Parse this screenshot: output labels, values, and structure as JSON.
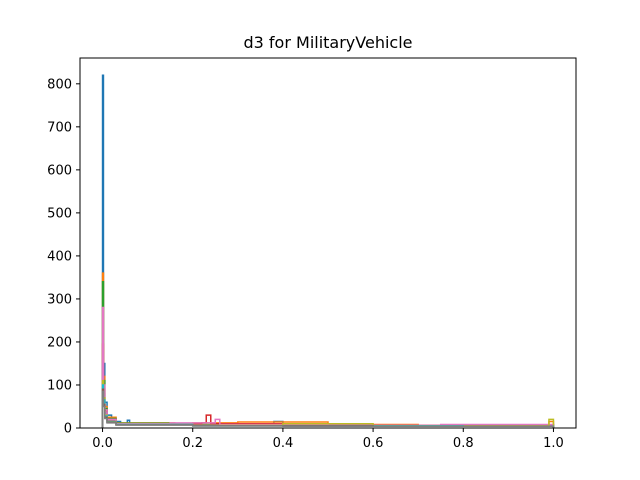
{
  "chart_data": {
    "type": "histogram",
    "title": "d3 for MilitaryVehicle",
    "xlabel": "",
    "ylabel": "",
    "xlim": [
      -0.05,
      1.05
    ],
    "ylim": [
      0,
      860
    ],
    "x_ticks": [
      0.0,
      0.2,
      0.4,
      0.6,
      0.8,
      1.0
    ],
    "x_tick_labels": [
      "0.0",
      "0.2",
      "0.4",
      "0.6",
      "0.8",
      "1.0"
    ],
    "y_ticks": [
      0,
      100,
      200,
      300,
      400,
      500,
      600,
      700,
      800
    ],
    "y_tick_labels": [
      "0",
      "100",
      "200",
      "300",
      "400",
      "500",
      "600",
      "700",
      "800"
    ],
    "histtype": "step",
    "grid": false,
    "series": [
      {
        "color": "#1f77b4",
        "points": [
          [
            0.0,
            820
          ],
          [
            0.002,
            150
          ],
          [
            0.005,
            60
          ],
          [
            0.01,
            30
          ],
          [
            0.02,
            15
          ],
          [
            0.04,
            10
          ],
          [
            0.055,
            18
          ],
          [
            0.06,
            8
          ],
          [
            0.2,
            6
          ],
          [
            0.38,
            15
          ],
          [
            0.4,
            7
          ],
          [
            0.6,
            6
          ],
          [
            0.8,
            5
          ],
          [
            1.0,
            6
          ]
        ]
      },
      {
        "color": "#ff7f0e",
        "points": [
          [
            0.0,
            360
          ],
          [
            0.002,
            120
          ],
          [
            0.005,
            50
          ],
          [
            0.01,
            25
          ],
          [
            0.03,
            12
          ],
          [
            0.16,
            10
          ],
          [
            0.2,
            12
          ],
          [
            0.3,
            14
          ],
          [
            0.5,
            8
          ],
          [
            0.7,
            6
          ],
          [
            0.9,
            5
          ],
          [
            0.99,
            15
          ],
          [
            1.0,
            8
          ]
        ]
      },
      {
        "color": "#2ca02c",
        "points": [
          [
            0.0,
            340
          ],
          [
            0.002,
            110
          ],
          [
            0.005,
            45
          ],
          [
            0.01,
            22
          ],
          [
            0.03,
            11
          ],
          [
            0.2,
            8
          ],
          [
            0.4,
            6
          ],
          [
            0.6,
            5
          ],
          [
            0.8,
            5
          ],
          [
            1.0,
            10
          ]
        ]
      },
      {
        "color": "#d62728",
        "points": [
          [
            0.0,
            195
          ],
          [
            0.002,
            90
          ],
          [
            0.005,
            40
          ],
          [
            0.01,
            20
          ],
          [
            0.03,
            10
          ],
          [
            0.22,
            12
          ],
          [
            0.23,
            30
          ],
          [
            0.24,
            10
          ],
          [
            0.4,
            8
          ],
          [
            0.6,
            6
          ],
          [
            0.8,
            5
          ],
          [
            1.0,
            9
          ]
        ]
      },
      {
        "color": "#9467bd",
        "points": [
          [
            0.0,
            150
          ],
          [
            0.002,
            80
          ],
          [
            0.005,
            35
          ],
          [
            0.01,
            18
          ],
          [
            0.03,
            9
          ],
          [
            0.2,
            7
          ],
          [
            0.5,
            6
          ],
          [
            0.7,
            5
          ],
          [
            0.9,
            6
          ],
          [
            1.0,
            7
          ]
        ]
      },
      {
        "color": "#e377c2",
        "points": [
          [
            0.0,
            280
          ],
          [
            0.002,
            100
          ],
          [
            0.005,
            42
          ],
          [
            0.01,
            20
          ],
          [
            0.03,
            10
          ],
          [
            0.15,
            12
          ],
          [
            0.25,
            20
          ],
          [
            0.26,
            8
          ],
          [
            0.5,
            6
          ],
          [
            0.75,
            8
          ],
          [
            1.0,
            6
          ]
        ]
      },
      {
        "color": "#bcbd22",
        "points": [
          [
            0.0,
            110
          ],
          [
            0.002,
            70
          ],
          [
            0.005,
            30
          ],
          [
            0.01,
            15
          ],
          [
            0.03,
            8
          ],
          [
            0.2,
            6
          ],
          [
            0.4,
            10
          ],
          [
            0.6,
            5
          ],
          [
            0.8,
            5
          ],
          [
            0.99,
            20
          ],
          [
            1.0,
            10
          ]
        ]
      },
      {
        "color": "#17becf",
        "points": [
          [
            0.0,
            100
          ],
          [
            0.002,
            65
          ],
          [
            0.005,
            28
          ],
          [
            0.01,
            14
          ],
          [
            0.03,
            8
          ],
          [
            0.2,
            5
          ],
          [
            0.4,
            5
          ],
          [
            0.6,
            5
          ],
          [
            0.8,
            4
          ],
          [
            1.0,
            6
          ]
        ]
      },
      {
        "color": "#8c564b",
        "points": [
          [
            0.0,
            90
          ],
          [
            0.002,
            55
          ],
          [
            0.005,
            25
          ],
          [
            0.01,
            13
          ],
          [
            0.03,
            7
          ],
          [
            0.2,
            5
          ],
          [
            0.4,
            5
          ],
          [
            0.6,
            4
          ],
          [
            0.8,
            4
          ],
          [
            1.0,
            5
          ]
        ]
      },
      {
        "color": "#7f7f7f",
        "points": [
          [
            0.0,
            85
          ],
          [
            0.002,
            50
          ],
          [
            0.005,
            22
          ],
          [
            0.01,
            12
          ],
          [
            0.03,
            7
          ],
          [
            0.2,
            5
          ],
          [
            0.4,
            4
          ],
          [
            0.6,
            4
          ],
          [
            0.8,
            4
          ],
          [
            1.0,
            5
          ]
        ]
      }
    ]
  }
}
